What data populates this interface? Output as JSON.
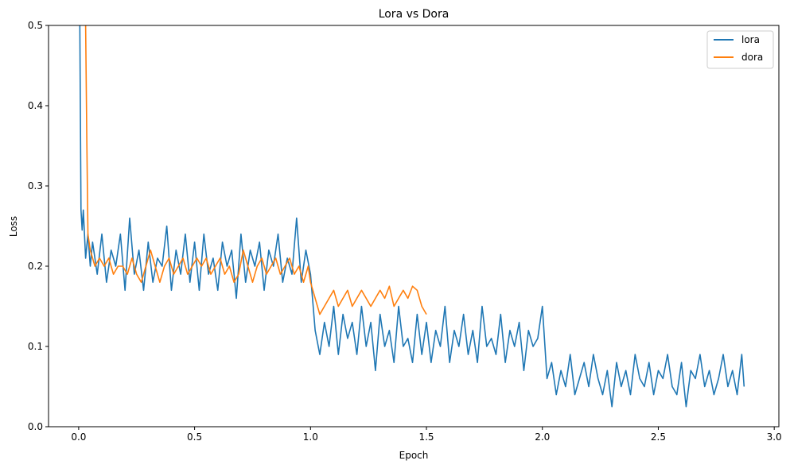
{
  "chart_data": {
    "type": "line",
    "title": "Lora vs Dora",
    "xlabel": "Epoch",
    "ylabel": "Loss",
    "xlim": [
      -0.13,
      3.02
    ],
    "ylim": [
      0.0,
      0.5
    ],
    "xticks": [
      0.0,
      0.5,
      1.0,
      1.5,
      2.0,
      2.5,
      3.0
    ],
    "xtick_labels": [
      "0.0",
      "0.5",
      "1.0",
      "1.5",
      "2.0",
      "2.5",
      "3.0"
    ],
    "yticks": [
      0.0,
      0.1,
      0.2,
      0.3,
      0.4,
      0.5
    ],
    "ytick_labels": [
      "0.0",
      "0.1",
      "0.2",
      "0.3",
      "0.4",
      "0.5"
    ],
    "grid": false,
    "legend": "top-right",
    "series": [
      {
        "name": "lora",
        "color": "#1f77b4",
        "x": [
          0.0,
          0.005,
          0.01,
          0.015,
          0.02,
          0.03,
          0.04,
          0.05,
          0.06,
          0.08,
          0.1,
          0.12,
          0.14,
          0.16,
          0.18,
          0.2,
          0.22,
          0.24,
          0.26,
          0.28,
          0.3,
          0.32,
          0.34,
          0.36,
          0.38,
          0.4,
          0.42,
          0.44,
          0.46,
          0.48,
          0.5,
          0.52,
          0.54,
          0.56,
          0.58,
          0.6,
          0.62,
          0.64,
          0.66,
          0.68,
          0.7,
          0.72,
          0.74,
          0.76,
          0.78,
          0.8,
          0.82,
          0.84,
          0.86,
          0.88,
          0.9,
          0.92,
          0.94,
          0.96,
          0.98,
          1.0,
          1.02,
          1.04,
          1.06,
          1.08,
          1.1,
          1.12,
          1.14,
          1.16,
          1.18,
          1.2,
          1.22,
          1.24,
          1.26,
          1.28,
          1.3,
          1.32,
          1.34,
          1.36,
          1.38,
          1.4,
          1.42,
          1.44,
          1.46,
          1.48,
          1.5,
          1.52,
          1.54,
          1.56,
          1.58,
          1.6,
          1.62,
          1.64,
          1.66,
          1.68,
          1.7,
          1.72,
          1.74,
          1.76,
          1.78,
          1.8,
          1.82,
          1.84,
          1.86,
          1.88,
          1.9,
          1.92,
          1.94,
          1.96,
          1.98,
          2.0,
          2.02,
          2.04,
          2.06,
          2.08,
          2.1,
          2.12,
          2.14,
          2.16,
          2.18,
          2.2,
          2.22,
          2.24,
          2.26,
          2.28,
          2.3,
          2.32,
          2.34,
          2.36,
          2.38,
          2.4,
          2.42,
          2.44,
          2.46,
          2.48,
          2.5,
          2.52,
          2.54,
          2.56,
          2.58,
          2.6,
          2.62,
          2.64,
          2.66,
          2.68,
          2.7,
          2.72,
          2.74,
          2.76,
          2.78,
          2.8,
          2.82,
          2.84,
          2.86,
          2.87
        ],
        "y": [
          0.55,
          0.5,
          0.27,
          0.245,
          0.27,
          0.21,
          0.24,
          0.2,
          0.23,
          0.19,
          0.24,
          0.18,
          0.22,
          0.2,
          0.24,
          0.17,
          0.26,
          0.19,
          0.22,
          0.17,
          0.23,
          0.18,
          0.21,
          0.2,
          0.25,
          0.17,
          0.22,
          0.19,
          0.24,
          0.18,
          0.23,
          0.17,
          0.24,
          0.19,
          0.21,
          0.17,
          0.23,
          0.2,
          0.22,
          0.16,
          0.24,
          0.18,
          0.22,
          0.2,
          0.23,
          0.17,
          0.22,
          0.2,
          0.24,
          0.18,
          0.21,
          0.19,
          0.26,
          0.18,
          0.22,
          0.19,
          0.12,
          0.09,
          0.13,
          0.1,
          0.15,
          0.09,
          0.14,
          0.11,
          0.13,
          0.09,
          0.15,
          0.1,
          0.13,
          0.07,
          0.14,
          0.1,
          0.12,
          0.08,
          0.15,
          0.1,
          0.11,
          0.08,
          0.14,
          0.09,
          0.13,
          0.08,
          0.12,
          0.1,
          0.15,
          0.08,
          0.12,
          0.1,
          0.14,
          0.09,
          0.12,
          0.08,
          0.15,
          0.1,
          0.11,
          0.09,
          0.14,
          0.08,
          0.12,
          0.1,
          0.13,
          0.07,
          0.12,
          0.1,
          0.11,
          0.15,
          0.06,
          0.08,
          0.04,
          0.07,
          0.05,
          0.09,
          0.04,
          0.06,
          0.08,
          0.05,
          0.09,
          0.06,
          0.04,
          0.07,
          0.025,
          0.08,
          0.05,
          0.07,
          0.04,
          0.09,
          0.06,
          0.05,
          0.08,
          0.04,
          0.07,
          0.06,
          0.09,
          0.05,
          0.04,
          0.08,
          0.025,
          0.07,
          0.06,
          0.09,
          0.05,
          0.07,
          0.04,
          0.06,
          0.09,
          0.05,
          0.07,
          0.04,
          0.09,
          0.05
        ]
      },
      {
        "name": "dora",
        "color": "#ff7f0e",
        "x": [
          0.03,
          0.035,
          0.04,
          0.05,
          0.07,
          0.09,
          0.11,
          0.13,
          0.15,
          0.17,
          0.19,
          0.21,
          0.23,
          0.25,
          0.27,
          0.29,
          0.31,
          0.33,
          0.35,
          0.37,
          0.39,
          0.41,
          0.43,
          0.45,
          0.47,
          0.49,
          0.51,
          0.53,
          0.55,
          0.57,
          0.59,
          0.61,
          0.63,
          0.65,
          0.67,
          0.69,
          0.71,
          0.73,
          0.75,
          0.77,
          0.79,
          0.81,
          0.83,
          0.85,
          0.87,
          0.89,
          0.91,
          0.93,
          0.95,
          0.97,
          0.99,
          1.0,
          1.02,
          1.04,
          1.06,
          1.08,
          1.1,
          1.12,
          1.14,
          1.16,
          1.18,
          1.2,
          1.22,
          1.24,
          1.26,
          1.28,
          1.3,
          1.32,
          1.34,
          1.36,
          1.38,
          1.4,
          1.42,
          1.44,
          1.46,
          1.48,
          1.5
        ],
        "y": [
          0.5,
          0.36,
          0.24,
          0.22,
          0.2,
          0.21,
          0.2,
          0.21,
          0.19,
          0.2,
          0.2,
          0.19,
          0.21,
          0.19,
          0.18,
          0.2,
          0.22,
          0.2,
          0.18,
          0.2,
          0.21,
          0.19,
          0.2,
          0.21,
          0.19,
          0.2,
          0.21,
          0.2,
          0.21,
          0.19,
          0.2,
          0.21,
          0.19,
          0.2,
          0.18,
          0.19,
          0.22,
          0.2,
          0.18,
          0.2,
          0.21,
          0.19,
          0.2,
          0.21,
          0.19,
          0.2,
          0.21,
          0.19,
          0.2,
          0.18,
          0.2,
          0.18,
          0.16,
          0.14,
          0.15,
          0.16,
          0.17,
          0.15,
          0.16,
          0.17,
          0.15,
          0.16,
          0.17,
          0.16,
          0.15,
          0.16,
          0.17,
          0.16,
          0.175,
          0.15,
          0.16,
          0.17,
          0.16,
          0.175,
          0.17,
          0.15,
          0.14
        ]
      }
    ]
  }
}
